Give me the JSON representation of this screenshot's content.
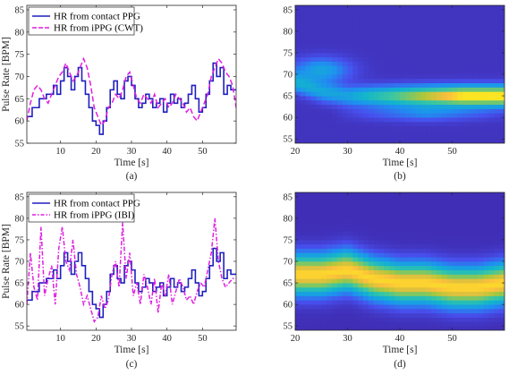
{
  "chart_data": [
    {
      "id": "a",
      "type": "line",
      "caption": "(a)",
      "xlabel": "Time [s]",
      "ylabel": "Pulse Rate [BPM]",
      "xlim": [
        0.5,
        59.5
      ],
      "ylim": [
        55,
        86
      ],
      "xticks": [
        10,
        20,
        30,
        40,
        50
      ],
      "yticks": [
        55,
        60,
        65,
        70,
        75,
        80,
        85
      ],
      "grid": false,
      "legend_position": "top-left",
      "series": [
        {
          "name": "HR from contact PPG",
          "style": "step",
          "color": "#1f1fbf",
          "x": [
            0.5,
            2,
            4,
            6,
            8,
            9,
            10,
            11,
            12,
            13,
            14,
            15,
            16,
            17,
            18,
            19,
            20,
            21,
            22,
            23,
            24,
            25,
            26,
            27,
            28,
            29,
            30,
            31,
            32,
            33,
            34,
            35,
            36,
            37,
            38,
            39,
            40,
            41,
            42,
            43,
            44,
            45,
            46,
            47,
            48,
            49,
            50,
            51,
            52,
            53,
            54,
            55,
            56,
            57,
            58,
            59.5
          ],
          "y": [
            61,
            63,
            65,
            66,
            68,
            66,
            69,
            72,
            70,
            67,
            70,
            72,
            69,
            66,
            63,
            60,
            59,
            57,
            60,
            63,
            67,
            69,
            66,
            65,
            69,
            70,
            68,
            65,
            63,
            64,
            66,
            65,
            63,
            64,
            65,
            62,
            64,
            66,
            64,
            65,
            63,
            64,
            66,
            68,
            65,
            62,
            63,
            66,
            69,
            73,
            70,
            72,
            66,
            68,
            67,
            67
          ]
        },
        {
          "name": "HR from iPPG (CWT)",
          "style": "dashed",
          "color": "#e01fe0",
          "x": [
            0.5,
            1.5,
            2.5,
            3.5,
            4.5,
            5.5,
            6.5,
            7.5,
            8.5,
            9.5,
            10.5,
            11.5,
            12.5,
            13.5,
            14.5,
            15.5,
            16.5,
            17.5,
            18.5,
            19.5,
            20.5,
            21.5,
            22.5,
            23.5,
            24.5,
            25.5,
            26.5,
            27.5,
            28.5,
            29.5,
            30.5,
            31.5,
            32.5,
            33.5,
            34.5,
            35.5,
            36.5,
            37.5,
            38.5,
            39.5,
            40.5,
            41.5,
            42.5,
            43.5,
            44.5,
            45.5,
            46.5,
            47.5,
            48.5,
            49.5,
            50.5,
            51.5,
            52.5,
            53.5,
            54.5,
            55.5,
            56.5,
            57.5,
            58.5,
            59.5
          ],
          "y": [
            60,
            64,
            67,
            68,
            67,
            65,
            64,
            66,
            68,
            70,
            71,
            73,
            71,
            69,
            70,
            72,
            74,
            72,
            68,
            63,
            61,
            59,
            60,
            63,
            64,
            66,
            65,
            67,
            70,
            71,
            68,
            65,
            64,
            66,
            65,
            64,
            66,
            63,
            64,
            65,
            63,
            64,
            66,
            65,
            64,
            62,
            63,
            61,
            60,
            62,
            64,
            66,
            70,
            72,
            74,
            73,
            71,
            70,
            68,
            63
          ]
        }
      ]
    },
    {
      "id": "b",
      "type": "heatmap",
      "caption": "(b)",
      "xlabel": "Time [s]",
      "ylabel": "",
      "xlim": [
        20,
        60
      ],
      "ylim": [
        54,
        86
      ],
      "xticks": [
        20,
        30,
        40,
        50
      ],
      "yticks": [
        55,
        60,
        65,
        70,
        75,
        80,
        85
      ],
      "ridge": {
        "t": [
          20,
          25,
          30,
          35,
          40,
          45,
          50,
          55,
          60
        ],
        "bpm": [
          68,
          66,
          65,
          65,
          65,
          65,
          65,
          65,
          65
        ]
      }
    },
    {
      "id": "c",
      "type": "line",
      "caption": "(c)",
      "xlabel": "Time [s]",
      "ylabel": "Pulse Rate [BPM]",
      "xlim": [
        0.5,
        59.5
      ],
      "ylim": [
        54,
        86
      ],
      "xticks": [
        10,
        20,
        30,
        40,
        50
      ],
      "yticks": [
        55,
        60,
        65,
        70,
        75,
        80,
        85
      ],
      "grid": false,
      "legend_position": "top-left",
      "series": [
        {
          "name": "HR from contact PPG",
          "style": "step",
          "color": "#1f1fbf",
          "x": [
            0.5,
            2,
            4,
            6,
            8,
            9,
            10,
            11,
            12,
            13,
            14,
            15,
            16,
            17,
            18,
            19,
            20,
            21,
            22,
            23,
            24,
            25,
            26,
            27,
            28,
            29,
            30,
            31,
            32,
            33,
            34,
            35,
            36,
            37,
            38,
            39,
            40,
            41,
            42,
            43,
            44,
            45,
            46,
            47,
            48,
            49,
            50,
            51,
            52,
            53,
            54,
            55,
            56,
            57,
            58,
            59.5
          ],
          "y": [
            61,
            63,
            65,
            66,
            68,
            66,
            69,
            72,
            70,
            67,
            70,
            72,
            69,
            66,
            63,
            60,
            59,
            57,
            60,
            63,
            67,
            69,
            66,
            65,
            69,
            70,
            68,
            65,
            63,
            64,
            66,
            65,
            63,
            64,
            65,
            62,
            64,
            66,
            64,
            65,
            63,
            64,
            66,
            68,
            65,
            62,
            63,
            66,
            69,
            73,
            70,
            72,
            66,
            68,
            67,
            67
          ]
        },
        {
          "name": "HR from iPPG (IBI)",
          "style": "dashdot",
          "color": "#e01fe0",
          "x": [
            0.5,
            1.5,
            2.5,
            3.5,
            4.5,
            5.5,
            6.5,
            7.5,
            8.5,
            9.5,
            10.5,
            11.5,
            12.5,
            13.5,
            14.5,
            15.5,
            16.5,
            17.5,
            18.5,
            19.5,
            20.5,
            21.5,
            22.5,
            23.5,
            24.5,
            25.5,
            26.5,
            27.5,
            28.5,
            29.5,
            30.5,
            31.5,
            32.5,
            33.5,
            34.5,
            35.5,
            36.5,
            37.5,
            38.5,
            39.5,
            40.5,
            41.5,
            42.5,
            43.5,
            44.5,
            45.5,
            46.5,
            47.5,
            48.5,
            49.5,
            50.5,
            51.5,
            52.5,
            53.5,
            54.5,
            55.5,
            56.5,
            57.5,
            58.5,
            59.5
          ],
          "y": [
            60,
            72,
            64,
            61,
            78,
            62,
            66,
            69,
            60,
            73,
            78,
            70,
            68,
            75,
            67,
            64,
            60,
            62,
            59,
            56,
            57,
            62,
            59,
            61,
            67,
            70,
            64,
            79,
            66,
            72,
            62,
            65,
            60,
            67,
            64,
            60,
            66,
            58,
            65,
            62,
            67,
            60,
            63,
            66,
            64,
            61,
            62,
            60,
            63,
            65,
            64,
            68,
            72,
            80,
            70,
            66,
            64,
            65,
            66,
            66
          ]
        }
      ]
    },
    {
      "id": "d",
      "type": "heatmap",
      "caption": "(d)",
      "xlabel": "Time [s]",
      "ylabel": "",
      "xlim": [
        20,
        60
      ],
      "ylim": [
        54,
        86
      ],
      "xticks": [
        20,
        30,
        40,
        50
      ],
      "yticks": [
        55,
        60,
        65,
        70,
        75,
        80,
        85
      ],
      "ridge": {
        "t": [
          20,
          25,
          30,
          35,
          40,
          45,
          50,
          55,
          60
        ],
        "bpm": [
          67,
          67,
          68,
          66,
          65,
          65,
          64,
          64,
          65
        ]
      }
    }
  ]
}
